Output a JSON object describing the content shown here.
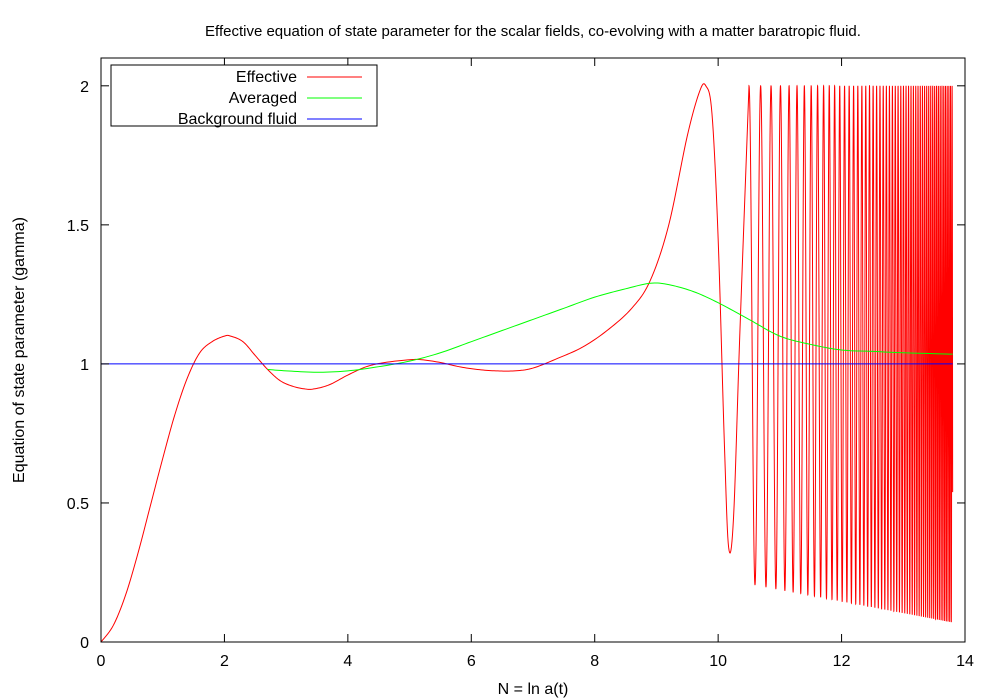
{
  "chart_data": {
    "type": "line",
    "title": "Effective equation of state parameter for the scalar fields, co-evolving with a matter baratropic fluid.",
    "xlabel": "N = ln a(t)",
    "ylabel": "Equation of state parameter (gamma)",
    "xlim": [
      0,
      14
    ],
    "ylim": [
      0,
      2.1
    ],
    "xticks": [
      0,
      2,
      4,
      6,
      8,
      10,
      12,
      14
    ],
    "xtick_labels": [
      "0",
      "2",
      "4",
      "6",
      "8",
      "10",
      "12",
      "14"
    ],
    "yticks": [
      0,
      0.5,
      1,
      1.5,
      2
    ],
    "ytick_labels": [
      "0",
      "0.5",
      "1",
      "1.5",
      "2"
    ],
    "grid": false,
    "legend_position": "top-left",
    "series": [
      {
        "name": "Effective",
        "color": "#ff0000",
        "x": [
          0,
          0.2,
          0.4,
          0.6,
          0.8,
          1.0,
          1.2,
          1.4,
          1.6,
          1.8,
          2.0,
          2.1,
          2.3,
          2.5,
          2.7,
          2.9,
          3.1,
          3.3,
          3.45,
          3.7,
          4.0,
          4.3,
          4.6,
          5.0,
          5.2,
          5.5,
          5.8,
          6.1,
          6.4,
          6.7,
          7.0,
          7.4,
          7.8,
          8.2,
          8.6,
          8.9,
          9.2,
          9.5,
          9.7,
          9.8,
          9.9,
          10.0,
          10.1,
          10.17,
          10.25,
          10.35,
          10.5,
          13.8
        ],
        "y": [
          0.0,
          0.06,
          0.17,
          0.32,
          0.49,
          0.66,
          0.82,
          0.95,
          1.04,
          1.08,
          1.1,
          1.1,
          1.08,
          1.03,
          0.98,
          0.94,
          0.92,
          0.91,
          0.91,
          0.925,
          0.96,
          0.99,
          1.005,
          1.015,
          1.015,
          1.005,
          0.99,
          0.98,
          0.975,
          0.975,
          0.985,
          1.02,
          1.06,
          1.12,
          1.2,
          1.3,
          1.5,
          1.82,
          1.98,
          2.0,
          1.9,
          1.45,
          0.72,
          0.34,
          0.45,
          1.1,
          2.0,
          2.0
        ],
        "oscillation": {
          "x_start": 10.5,
          "x_end": 13.8,
          "min_start": 0.21,
          "min_end": 0.07,
          "max": 2.0
        }
      },
      {
        "name": "Averaged",
        "color": "#00ff00",
        "x": [
          2.7,
          3.0,
          3.5,
          4.0,
          4.5,
          5.0,
          5.5,
          6.0,
          6.5,
          7.0,
          7.5,
          8.0,
          8.5,
          8.9,
          9.2,
          9.6,
          10.0,
          10.5,
          11.0,
          11.5,
          12.0,
          12.5,
          13.0,
          13.8
        ],
        "y": [
          0.98,
          0.975,
          0.97,
          0.975,
          0.99,
          1.01,
          1.04,
          1.08,
          1.12,
          1.16,
          1.2,
          1.24,
          1.27,
          1.29,
          1.285,
          1.26,
          1.22,
          1.16,
          1.1,
          1.07,
          1.05,
          1.045,
          1.04,
          1.035
        ]
      },
      {
        "name": "Background fluid",
        "color": "#0000ff",
        "x": [
          0,
          13.8
        ],
        "y": [
          1,
          1
        ]
      }
    ]
  }
}
